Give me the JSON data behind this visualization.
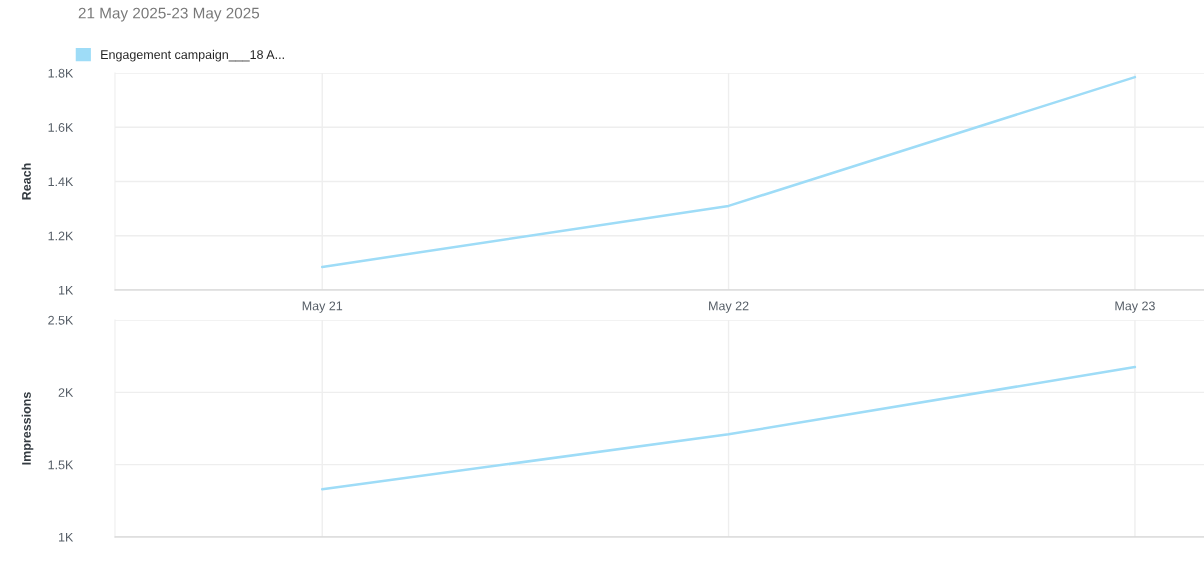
{
  "chart_data": [
    {
      "type": "line",
      "title": "21 May 2025-23 May 2025",
      "ylabel": "Reach",
      "categories": [
        "May 21",
        "May 22",
        "May 23"
      ],
      "series": [
        {
          "name": "Engagement campaign___18 A...",
          "color": "#9edcf7",
          "values": [
            1085,
            1310,
            1785
          ]
        }
      ],
      "ylim": [
        1000,
        1800
      ],
      "yticks": [
        {
          "value": 1000,
          "label": "1K"
        },
        {
          "value": 1200,
          "label": "1.2K"
        },
        {
          "value": 1400,
          "label": "1.4K"
        },
        {
          "value": 1600,
          "label": "1.6K"
        },
        {
          "value": 1800,
          "label": "1.8K"
        }
      ],
      "grid": true,
      "legend": "top left"
    },
    {
      "type": "line",
      "ylabel": "Impressions",
      "categories": [
        null,
        null,
        null
      ],
      "series": [
        {
          "color": "#9edcf7",
          "values": [
            1330,
            1710,
            2175
          ]
        }
      ],
      "ylim": [
        1000,
        2500
      ],
      "yticks": [
        {
          "value": 1000,
          "label": "1K"
        },
        {
          "value": 1500,
          "label": "1.5K"
        },
        {
          "value": 2000,
          "label": "2K"
        },
        {
          "value": 2500,
          "label": "2.5K"
        }
      ],
      "grid": true
    }
  ]
}
